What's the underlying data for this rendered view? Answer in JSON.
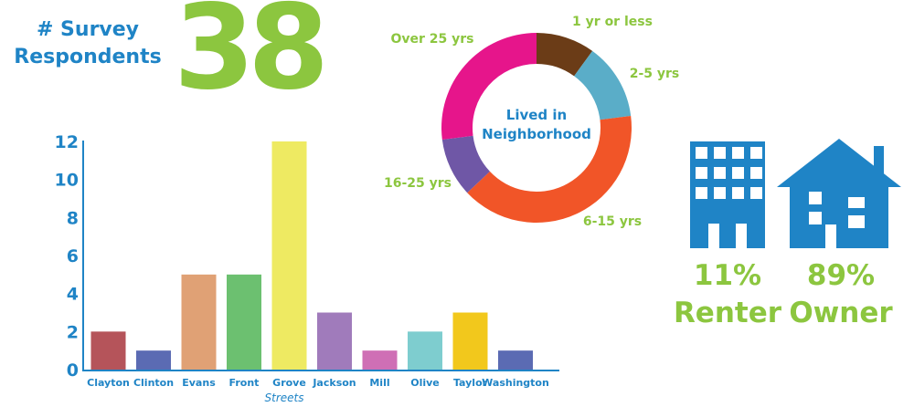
{
  "respondents": {
    "label_line1": "# Survey",
    "label_line2": "Respondents",
    "count": "38"
  },
  "chart_data": [
    {
      "type": "bar",
      "categories": [
        "Clayton",
        "Clinton",
        "Evans",
        "Front",
        "Grove",
        "Jackson",
        "Mill",
        "Olive",
        "Taylor",
        "Washington"
      ],
      "values": [
        2,
        1,
        5,
        5,
        12,
        3,
        1,
        2,
        3,
        1
      ],
      "colors": [
        "#b5545a",
        "#5b6bb3",
        "#e0a175",
        "#6cc070",
        "#eeea62",
        "#a07bbb",
        "#cf6fb5",
        "#7ecdcf",
        "#f2c81c",
        "#5b6bb3"
      ],
      "xlabel": "Streets",
      "ylabel": "",
      "ylim": [
        0,
        12
      ],
      "yticks": [
        0,
        2,
        4,
        6,
        8,
        10,
        12
      ],
      "grid": false
    },
    {
      "type": "pie",
      "title": "Lived in Neighborhood",
      "labels": [
        "1 yr or less",
        "2-5 yrs",
        "6-15 yrs",
        "16-25 yrs",
        "Over 25 yrs"
      ],
      "values": [
        10,
        13,
        40,
        10,
        27
      ],
      "colors": [
        "#6b3c17",
        "#5aadc8",
        "#f15528",
        "#6f57a6",
        "#e6158b"
      ]
    }
  ],
  "housing": {
    "renter": {
      "percent": "11%",
      "label": "Renter",
      "value": 11
    },
    "owner": {
      "percent": "89%",
      "label": "Owner",
      "value": 89
    },
    "icon_color": "#1f84c6",
    "text_color": "#8cc63f"
  }
}
